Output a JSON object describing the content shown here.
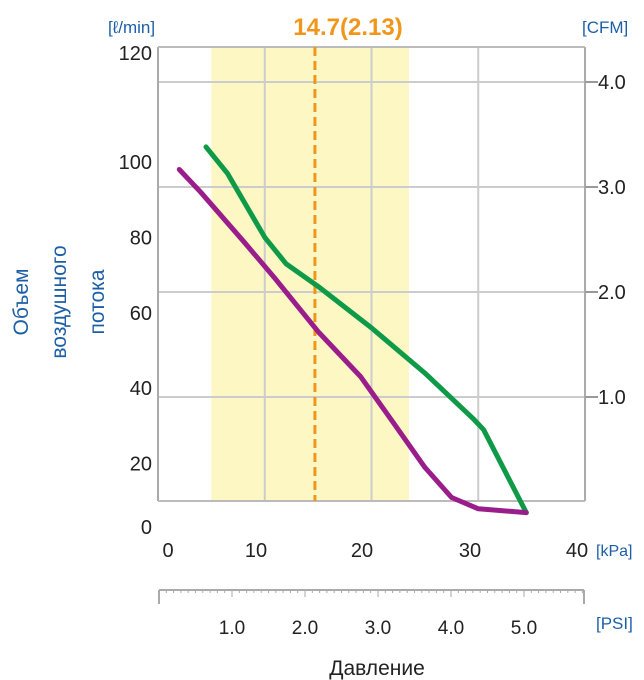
{
  "chart_data": {
    "type": "line",
    "highlight_label": "14.7(2.13)",
    "highlight_x": 14.7,
    "highlight_range": [
      5,
      23.5
    ],
    "x_primary": {
      "unit": "[kPa]",
      "ticks": [
        "0",
        "10",
        "20",
        "30",
        "40"
      ],
      "range": [
        0,
        40
      ]
    },
    "x_secondary": {
      "unit": "[PSI]",
      "ticks": [
        "1.0",
        "2.0",
        "3.0",
        "4.0",
        "5.0"
      ],
      "values": [
        1,
        2,
        3,
        4,
        5
      ]
    },
    "xlabel": "Давление",
    "y_left": {
      "unit": "[ℓ/min]",
      "ticks": [
        "120",
        "100",
        "80",
        "60",
        "40",
        "20",
        "0"
      ],
      "values": [
        120,
        100,
        80,
        60,
        40,
        20,
        0
      ]
    },
    "y_right": {
      "unit": "[CFM]",
      "ticks": [
        "4.0",
        "3.0",
        "2.0",
        "1.0"
      ],
      "values": [
        4,
        3,
        2,
        1
      ]
    },
    "ylabel": [
      "Объем",
      "воздушного",
      "потока"
    ],
    "grid": true,
    "series": [
      {
        "color": "#0f9a48",
        "x": [
          4.5,
          6.5,
          10,
          12,
          15,
          20,
          25,
          29.5,
          30.5,
          34.5
        ],
        "y": [
          104,
          97,
          80,
          73,
          67,
          56,
          44,
          32,
          29,
          7
        ]
      },
      {
        "color": "#9a1d8c",
        "x": [
          2,
          4,
          8,
          11,
          15,
          19,
          22,
          25,
          27.5,
          30,
          34.5
        ],
        "y": [
          98,
          92,
          79,
          69,
          55,
          43,
          31,
          19,
          11,
          8,
          7
        ]
      }
    ],
    "colors": {
      "highlight_fill": "#fdf7c4",
      "highlight_line": "#f0961a",
      "axis_text": "#1d5fa6",
      "grid": "#cccccc"
    }
  }
}
